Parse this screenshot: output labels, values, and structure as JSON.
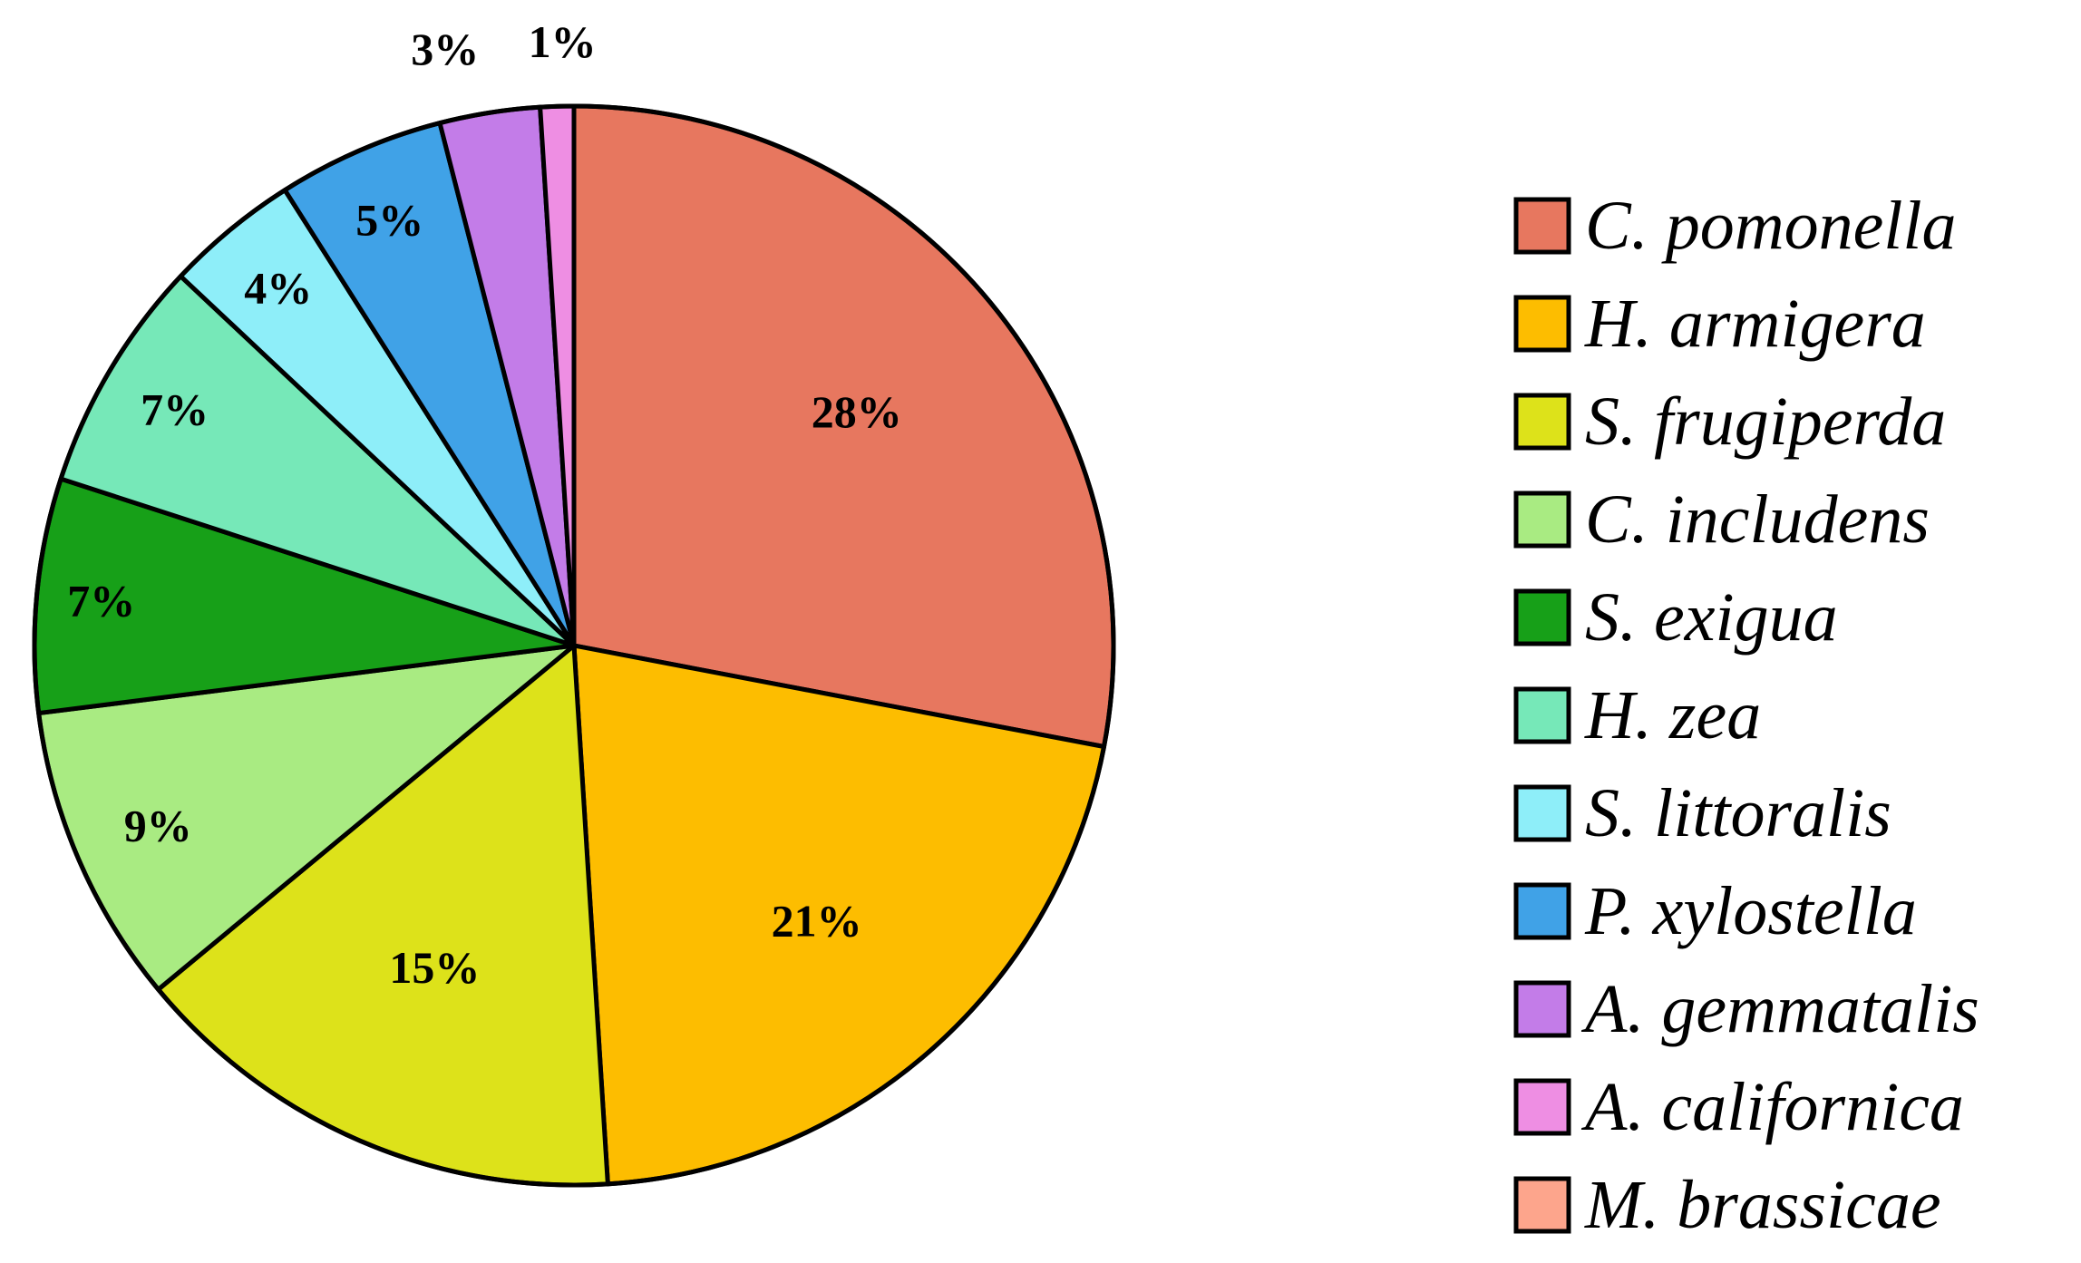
{
  "chart_data": {
    "type": "pie",
    "title": "",
    "start_angle_deg": 0,
    "direction": "clockwise",
    "legend_position": "right",
    "slices": [
      {
        "name": "C. pomonella",
        "value": 28,
        "label": "28%",
        "color": "#E7775F"
      },
      {
        "name": "H. armigera",
        "value": 21,
        "label": "21%",
        "color": "#FDBD00"
      },
      {
        "name": "S. frugiperda",
        "value": 15,
        "label": "15%",
        "color": "#DDE21A"
      },
      {
        "name": "C. includens",
        "value": 9,
        "label": "9%",
        "color": "#A9EB82"
      },
      {
        "name": "S. exigua",
        "value": 7,
        "label": "7%",
        "color": "#17A018"
      },
      {
        "name": "H. zea",
        "value": 7,
        "label": "7%",
        "color": "#76E8B8"
      },
      {
        "name": "S. littoralis",
        "value": 4,
        "label": "4%",
        "color": "#8EEEF9"
      },
      {
        "name": "P. xylostella",
        "value": 5,
        "label": "5%",
        "color": "#40A2E7"
      },
      {
        "name": "A. gemmatalis",
        "value": 3,
        "label": "3%",
        "color": "#C37CE8"
      },
      {
        "name": "A. californica",
        "value": 1,
        "label": "1%",
        "color": "#EE8EE3"
      },
      {
        "name": "M. brassicae",
        "value": 0,
        "label": "",
        "color": "#FDA58C"
      }
    ]
  }
}
